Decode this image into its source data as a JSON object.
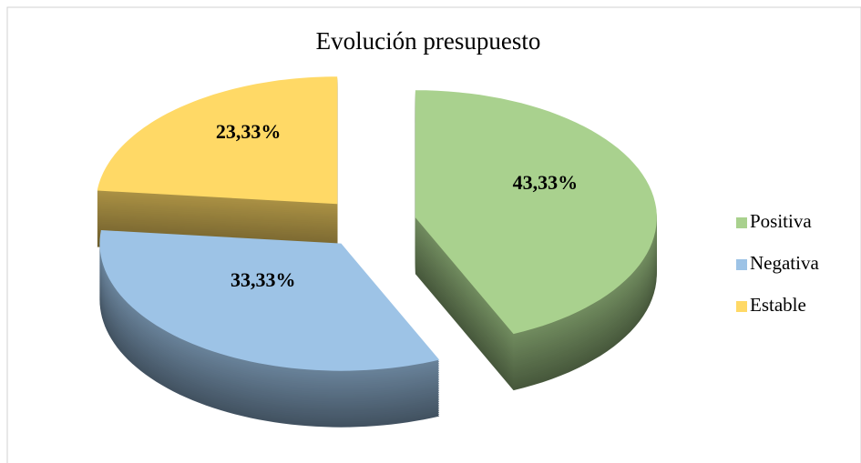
{
  "chart_data": {
    "type": "pie",
    "title": "Evolución presupuesto",
    "categories": [
      "Positiva",
      "Negativa",
      "Estable"
    ],
    "values": [
      43.33,
      33.33,
      23.33
    ],
    "value_labels": [
      "43,33%",
      "33,33%",
      "23,33%"
    ],
    "colors": [
      "#a9d18e",
      "#9dc3e6",
      "#ffd966"
    ],
    "legend": "right"
  }
}
